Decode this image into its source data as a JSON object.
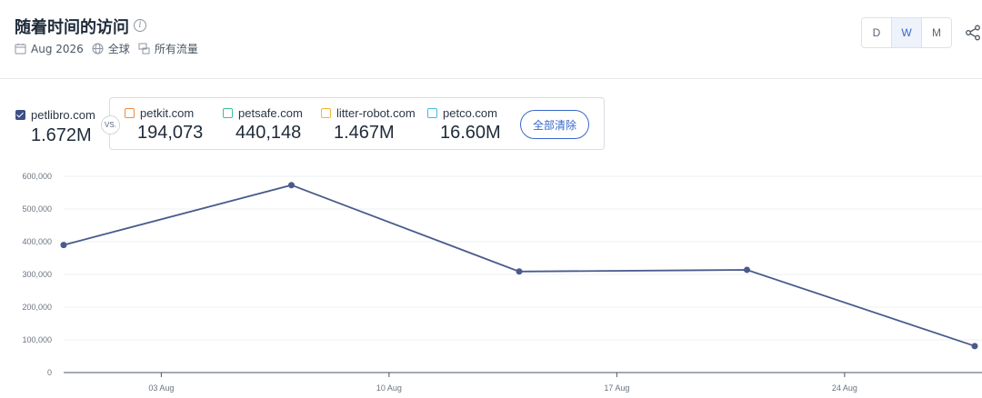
{
  "header": {
    "title": "随着时间的访问",
    "meta": {
      "date": "Aug 2026",
      "region": "全球",
      "traffic": "所有流量"
    },
    "granularity": [
      "D",
      "W",
      "M"
    ],
    "granularity_active": "W"
  },
  "main_site": {
    "name": "petlibro.com",
    "value": "1.672M",
    "color": "#3d4f86"
  },
  "vs_label": "VS.",
  "competitors": [
    {
      "name": "petkit.com",
      "value": "194,073",
      "color": "#ee8a3c"
    },
    {
      "name": "petsafe.com",
      "value": "440,148",
      "color": "#3cbf9a"
    },
    {
      "name": "litter-robot.com",
      "value": "1.467M",
      "color": "#f2b632"
    },
    {
      "name": "petco.com",
      "value": "16.60M",
      "color": "#3cbde0"
    }
  ],
  "clear_all_label": "全部清除",
  "chart_data": {
    "type": "line",
    "series": [
      {
        "name": "petlibro.com",
        "color": "#4a5a8c",
        "x": [
          "2026-07-31",
          "2026-08-07",
          "2026-08-14",
          "2026-08-21",
          "2026-08-28"
        ],
        "values": [
          390000,
          573000,
          309000,
          314000,
          81000
        ]
      }
    ],
    "xticks": [
      "03 Aug",
      "10 Aug",
      "17 Aug",
      "24 Aug"
    ],
    "yticks": [
      "0",
      "100,000",
      "200,000",
      "300,000",
      "400,000",
      "500,000",
      "600,000"
    ],
    "ylim": [
      0,
      600000
    ],
    "grid": true
  }
}
